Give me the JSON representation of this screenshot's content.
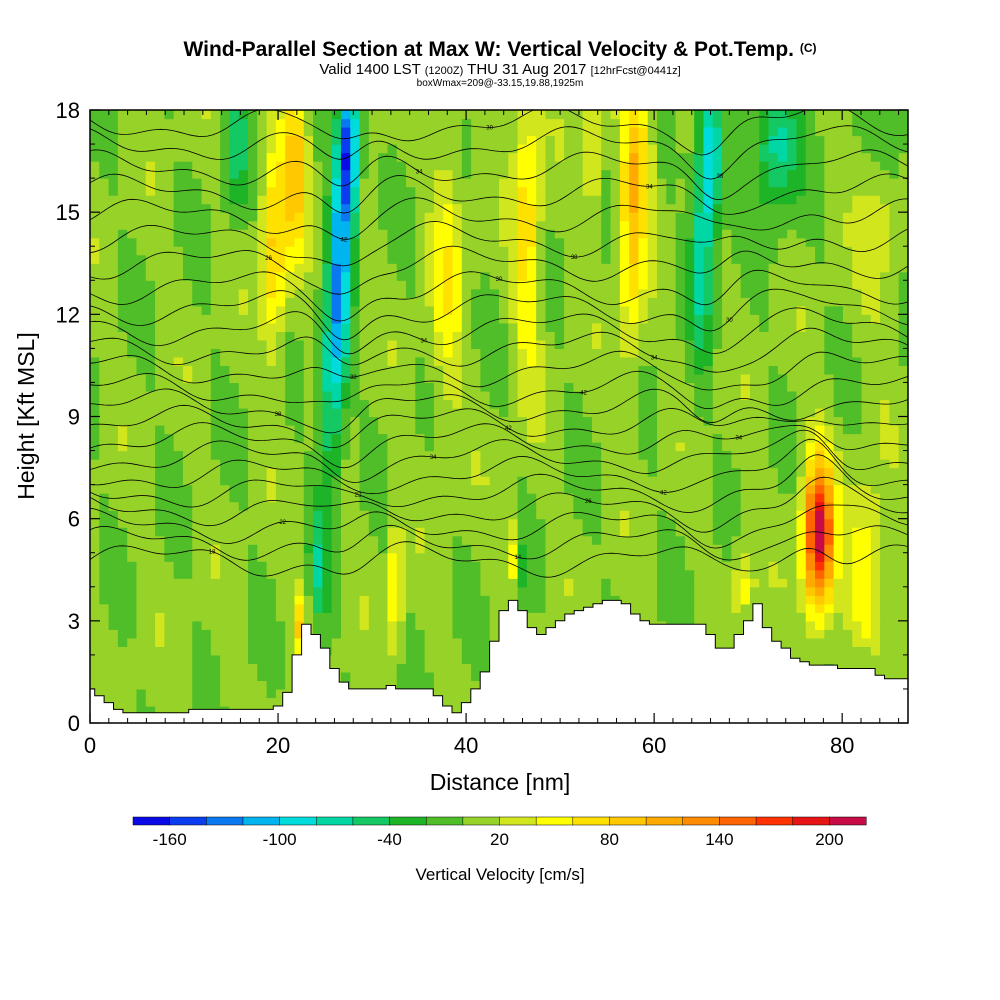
{
  "chart_data": {
    "type": "heatmap",
    "title": "Wind-Parallel Section at Max W: Vertical Velocity & Pot.Temp.",
    "copyright": "(C)",
    "subtitle_valid": "Valid 1400 LST",
    "subtitle_utc": "(1200Z)",
    "subtitle_date": "THU 31 Aug 2017",
    "subtitle_fcst": "[12hrFcst@0441z]",
    "subtitle2": "boxWmax=209@-33.15,19.88,1925m",
    "xlabel": "Distance [nm]",
    "ylabel": "Height [Kft MSL]",
    "xlim": [
      0,
      87
    ],
    "ylim": [
      0,
      18
    ],
    "x_ticks": [
      "0",
      "20",
      "40",
      "60",
      "80"
    ],
    "y_ticks": [
      "0",
      "3",
      "6",
      "9",
      "12",
      "15",
      "18"
    ],
    "colorbar_label": "Vertical Velocity [cm/s]",
    "colorbar_ticks": [
      "-160",
      "-100",
      "-40",
      "20",
      "80",
      "140",
      "200"
    ],
    "colorbar_levels": [
      -180,
      -160,
      -140,
      -120,
      -100,
      -80,
      -60,
      -40,
      -20,
      0,
      20,
      40,
      60,
      80,
      100,
      120,
      140,
      160,
      180,
      200,
      220
    ],
    "colors": [
      "#0a0ae6",
      "#0a3cf0",
      "#0a78f0",
      "#00b4f0",
      "#00dcdc",
      "#00d7a5",
      "#14c864",
      "#1eb428",
      "#50be28",
      "#96d228",
      "#d2e61e",
      "#ffff00",
      "#ffe100",
      "#ffc800",
      "#ffaa00",
      "#ff8c00",
      "#ff6400",
      "#ff3200",
      "#e61414",
      "#c80a46"
    ],
    "terrain_kft": [
      1.0,
      0.8,
      0.6,
      0.4,
      0.3,
      0.3,
      0.3,
      0.3,
      0.3,
      0.3,
      0.3,
      0.4,
      0.4,
      0.4,
      0.4,
      0.4,
      0.4,
      0.4,
      0.4,
      0.4,
      0.5,
      0.9,
      2.0,
      2.9,
      2.6,
      2.2,
      1.6,
      1.2,
      1.0,
      1.0,
      1.0,
      1.0,
      1.1,
      1.0,
      1.0,
      1.0,
      1.0,
      0.8,
      0.5,
      0.3,
      0.6,
      1.0,
      1.5,
      2.4,
      3.3,
      3.6,
      3.3,
      2.8,
      2.6,
      2.8,
      3.0,
      3.2,
      3.3,
      3.4,
      3.5,
      3.6,
      3.6,
      3.5,
      3.2,
      3.0,
      2.9,
      2.9,
      2.9,
      2.9,
      2.9,
      2.9,
      2.6,
      2.2,
      2.2,
      2.6,
      3.0,
      3.5,
      2.8,
      2.4,
      2.2,
      1.9,
      1.8,
      1.7,
      1.7,
      1.7,
      1.6,
      1.6,
      1.6,
      1.6,
      1.4,
      1.3,
      1.3,
      1.3
    ],
    "updrafts": [
      {
        "x": 77.5,
        "z": 5.5,
        "w": 205,
        "sx": 1.1,
        "sz": 1.6
      },
      {
        "x": 21.8,
        "z": 16.5,
        "w": 95,
        "sx": 0.9,
        "sz": 1.8
      },
      {
        "x": 19.5,
        "z": 14.0,
        "w": 80,
        "sx": 0.9,
        "sz": 2.2
      },
      {
        "x": 22.5,
        "z": 2.5,
        "w": 90,
        "sx": 0.5,
        "sz": 1.0
      },
      {
        "x": 32.5,
        "z": 4.0,
        "w": 70,
        "sx": 0.5,
        "sz": 1.3
      },
      {
        "x": 38.0,
        "z": 13.0,
        "w": 45,
        "sx": 1.2,
        "sz": 3.0
      },
      {
        "x": 44.8,
        "z": 4.5,
        "w": 80,
        "sx": 0.4,
        "sz": 1.0
      },
      {
        "x": 46.5,
        "z": 14.5,
        "w": 70,
        "sx": 1.0,
        "sz": 2.8
      },
      {
        "x": 58.2,
        "z": 16.5,
        "w": 75,
        "sx": 1.1,
        "sz": 1.6
      },
      {
        "x": 57.5,
        "z": 13.5,
        "w": 60,
        "sx": 0.9,
        "sz": 2.2
      },
      {
        "x": 53.5,
        "z": 16.8,
        "w": 50,
        "sx": 0.7,
        "sz": 1.3
      },
      {
        "x": 82.5,
        "z": 4.5,
        "w": 60,
        "sx": 1.3,
        "sz": 1.7
      },
      {
        "x": 69.5,
        "z": 4.0,
        "w": 45,
        "sx": 0.8,
        "sz": 1.0
      },
      {
        "x": 84.0,
        "z": 15.0,
        "w": 30,
        "sx": 1.5,
        "sz": 2.5
      }
    ],
    "downdrafts": [
      {
        "x": 27.5,
        "z": 16.8,
        "w": -165,
        "sx": 0.8,
        "sz": 1.6
      },
      {
        "x": 26.5,
        "z": 13.0,
        "w": -110,
        "sx": 0.8,
        "sz": 2.5
      },
      {
        "x": 25.5,
        "z": 9.5,
        "w": -70,
        "sx": 0.8,
        "sz": 2.0
      },
      {
        "x": 24.3,
        "z": 4.5,
        "w": -55,
        "sx": 0.7,
        "sz": 1.5
      },
      {
        "x": 66.0,
        "z": 16.5,
        "w": -105,
        "sx": 0.9,
        "sz": 1.6
      },
      {
        "x": 65.0,
        "z": 13.5,
        "w": -70,
        "sx": 0.8,
        "sz": 2.0
      },
      {
        "x": 73.0,
        "z": 17.0,
        "w": -80,
        "sx": 1.7,
        "sz": 1.3
      },
      {
        "x": 15.5,
        "z": 17.0,
        "w": -60,
        "sx": 0.9,
        "sz": 1.3
      },
      {
        "x": 45.5,
        "z": 4.0,
        "w": -60,
        "sx": 0.5,
        "sz": 0.8
      },
      {
        "x": 85.0,
        "z": 17.2,
        "w": -40,
        "sx": 1.5,
        "sz": 1.2
      }
    ],
    "theta_contours": [
      {
        "z0": 4.8,
        "label": "18"
      },
      {
        "z0": 5.3,
        "label": "14"
      },
      {
        "z0": 5.8,
        "label": "22"
      },
      {
        "z0": 6.3,
        "label": "26"
      },
      {
        "z0": 6.8,
        "label": "22"
      },
      {
        "z0": 7.3,
        "label": "42"
      },
      {
        "z0": 7.8,
        "label": "34"
      },
      {
        "z0": 8.3,
        "label": "34"
      },
      {
        "z0": 8.8,
        "label": "42"
      },
      {
        "z0": 9.3,
        "label": "38"
      },
      {
        "z0": 9.8,
        "label": "42"
      },
      {
        "z0": 10.4,
        "label": "38"
      },
      {
        "z0": 11.0,
        "label": "34"
      },
      {
        "z0": 11.6,
        "label": "34"
      },
      {
        "z0": 12.2,
        "label": "30"
      },
      {
        "z0": 12.8,
        "label": "30"
      },
      {
        "z0": 13.5,
        "label": "26"
      },
      {
        "z0": 14.2,
        "label": "38"
      },
      {
        "z0": 14.9,
        "label": "42"
      },
      {
        "z0": 15.6,
        "label": "34"
      },
      {
        "z0": 16.3,
        "label": "34"
      },
      {
        "z0": 17.0,
        "label": "38"
      },
      {
        "z0": 17.6,
        "label": "30"
      }
    ]
  }
}
